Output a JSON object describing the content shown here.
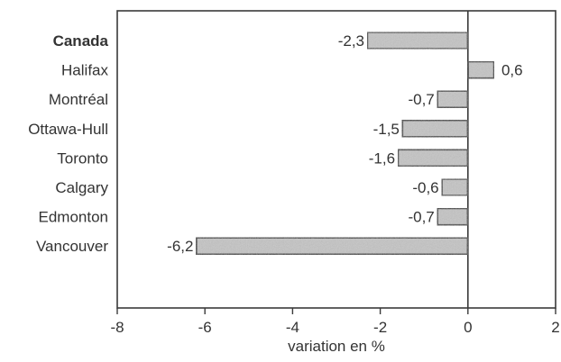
{
  "chart_data": {
    "type": "bar",
    "orientation": "horizontal",
    "categories": [
      "Canada",
      "Halifax",
      "Montréal",
      "Ottawa-Hull",
      "Toronto",
      "Calgary",
      "Edmonton",
      "Vancouver"
    ],
    "values": [
      -2.3,
      0.6,
      -0.7,
      -1.5,
      -1.6,
      -0.6,
      -0.7,
      -6.2
    ],
    "data_labels": [
      "-2,3",
      "0,6",
      "-0,7",
      "-1,5",
      "-1,6",
      "-0,6",
      "-0,7",
      "-6,2"
    ],
    "bold_categories": [
      "Canada"
    ],
    "xlabel": "variation en %",
    "xlim": [
      -8,
      2
    ],
    "xticks": [
      -8,
      -6,
      -4,
      -2,
      0,
      2
    ],
    "xtick_labels": [
      "-8",
      "-6",
      "-4",
      "-2",
      "0",
      "2"
    ],
    "grid": false,
    "colors": {
      "bar_fill": "#c4c4c4",
      "bar_stroke": "#3a3a3a",
      "axis": "#3a3a3a",
      "text": "#333333"
    }
  }
}
